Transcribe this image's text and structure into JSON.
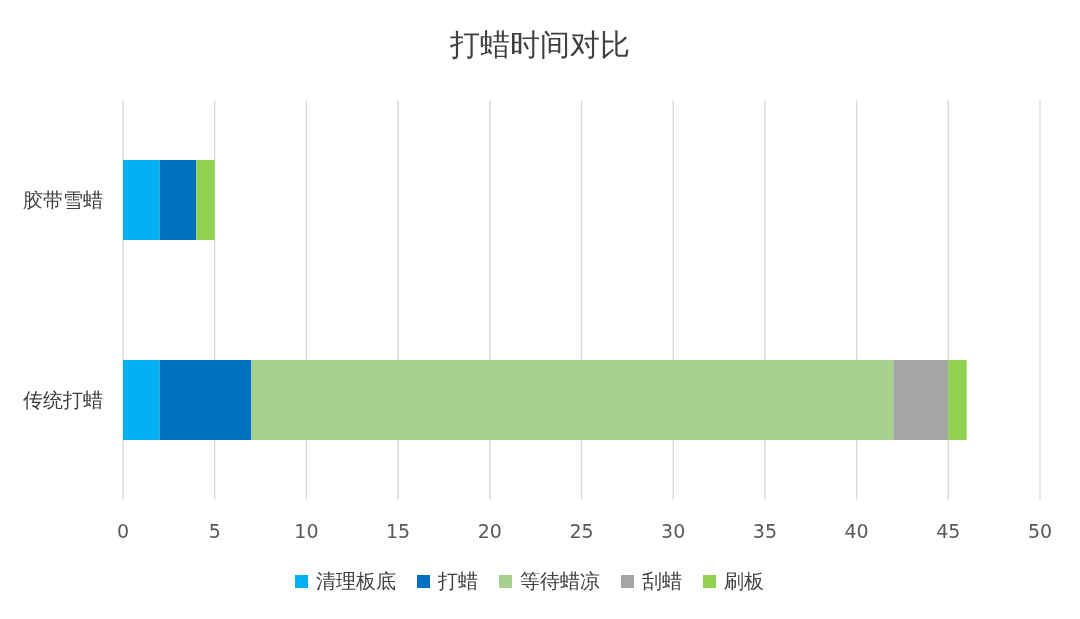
{
  "chart_data": {
    "type": "bar",
    "title": "打蜡时间对比",
    "orientation": "horizontal",
    "stacked": true,
    "categories": [
      "胶带雪蜡",
      "传统打蜡"
    ],
    "series": [
      {
        "name": "清理板底",
        "color": "#00b0f0",
        "values": [
          2,
          2
        ]
      },
      {
        "name": "打蜡",
        "color": "#0070c0",
        "values": [
          2,
          5
        ]
      },
      {
        "name": "等待蜡凉",
        "color": "#a9d18e",
        "values": [
          0,
          35
        ]
      },
      {
        "name": "刮蜡",
        "color": "#a5a5a5",
        "values": [
          0,
          3
        ]
      },
      {
        "name": "刷板",
        "color": "#92d050",
        "values": [
          1,
          1
        ]
      }
    ],
    "xlim": [
      0,
      50
    ],
    "xticks": [
      0,
      5,
      10,
      15,
      20,
      25,
      30,
      35,
      40,
      45,
      50
    ],
    "grid": "x",
    "legend": "bottom"
  }
}
